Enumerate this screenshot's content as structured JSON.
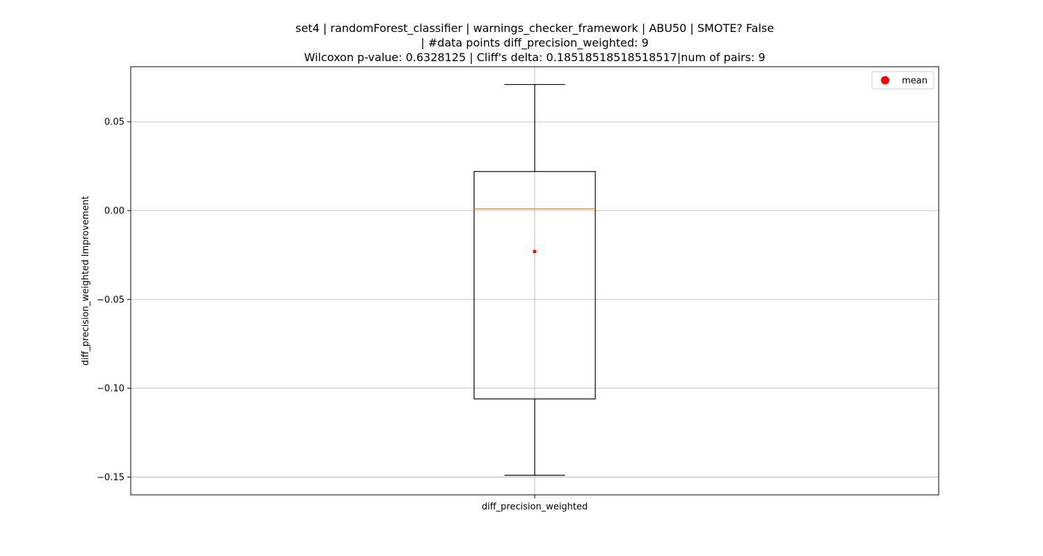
{
  "chart_data": {
    "type": "box",
    "title_lines": [
      "set4 | randomForest_classifier | warnings_checker_framework | ABU50 | SMOTE? False",
      "| #data points diff_precision_weighted: 9",
      "Wilcoxon p-value: 0.6328125 | Cliff's delta: 0.18518518518518517|num of pairs: 9"
    ],
    "xlabel": "",
    "ylabel": "diff_precision_weighted Improvement",
    "categories": [
      "diff_precision_weighted"
    ],
    "ylim": [
      -0.16,
      0.081
    ],
    "yticks": [
      -0.15,
      -0.1,
      -0.05,
      0.0,
      0.05
    ],
    "ytick_labels": [
      "−0.15",
      "−0.10",
      "−0.05",
      "0.00",
      "0.05"
    ],
    "grid": true,
    "legend": {
      "position": "top-right",
      "entries": [
        {
          "label": "mean",
          "color": "#ff0000",
          "marker": "circle"
        }
      ]
    },
    "boxes": [
      {
        "category": "diff_precision_weighted",
        "whisker_low": -0.149,
        "q1": -0.106,
        "median": 0.001,
        "q3": 0.022,
        "whisker_high": 0.071,
        "mean": -0.023
      }
    ],
    "colors": {
      "box": "#000000",
      "median": "#ff7f0e",
      "mean": "#ff0000",
      "grid": "#b0b0b0"
    }
  }
}
